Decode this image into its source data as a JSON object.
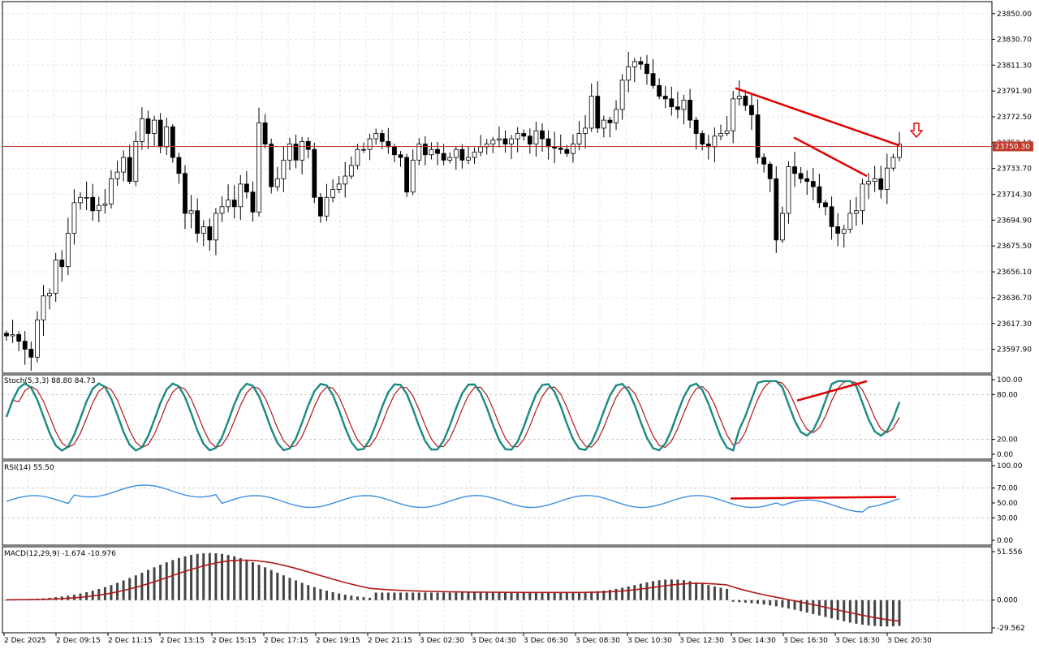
{
  "price_panel": {
    "y_range": [
      23580,
      23859
    ],
    "y_ticks": [
      "23850.00",
      "23830.70",
      "23811.30",
      "23791.90",
      "23772.50",
      "23753.10",
      "23733.70",
      "23714.30",
      "23694.90",
      "23675.50",
      "23656.10",
      "23636.70",
      "23617.30",
      "23597.90"
    ],
    "current_price": 23750.3,
    "current_price_label": "23750.30",
    "current_price_color": "#c0392b",
    "bull_color": "#ffffff",
    "bear_color": "#000000"
  },
  "stoch": {
    "label": "Stoch(5,3,3) 88.80 84.73",
    "ticks": [
      "100.00",
      "80.00",
      "20.00",
      "0.00"
    ],
    "main_color": "#1a8a80",
    "signal_color": "#b01818"
  },
  "rsi": {
    "label": "RSI(14) 55.50",
    "ticks": [
      "100.00",
      "70.00",
      "50.00",
      "30.00",
      "0.00"
    ],
    "color": "#3c8fe0"
  },
  "macd": {
    "label": "MACD(12,29,9) -1.674 -10.976",
    "ticks": [
      "51.556",
      "0.000",
      "-29.562"
    ],
    "hist_color": "#444444",
    "signal_color": "#b01818"
  },
  "x_labels": [
    "2 Dec 2025",
    "2 Dec 09:15",
    "2 Dec 11:15",
    "2 Dec 13:15",
    "2 Dec 15:15",
    "2 Dec 17:15",
    "2 Dec 19:15",
    "2 Dec 21:15",
    "3 Dec 02:30",
    "3 Dec 04:30",
    "3 Dec 06:30",
    "3 Dec 08:30",
    "3 Dec 10:30",
    "3 Dec 12:30",
    "3 Dec 14:30",
    "3 Dec 16:30",
    "3 Dec 18:30",
    "3 Dec 20:30"
  ],
  "divergence_color": "#e00000",
  "chart_data": {
    "type": "candlestick",
    "ylim": [
      23580,
      23859
    ],
    "closes_approx": [
      23608,
      23609,
      23604,
      23598,
      23592,
      23620,
      23638,
      23640,
      23665,
      23660,
      23685,
      23708,
      23712,
      23712,
      23702,
      23706,
      23707,
      23726,
      23731,
      23742,
      23724,
      23754,
      23771,
      23760,
      23770,
      23750,
      23765,
      23742,
      23730,
      23700,
      23702,
      23685,
      23690,
      23680,
      23700,
      23705,
      23710,
      23705,
      23722,
      23716,
      23701,
      23768,
      23752,
      23720,
      23726,
      23740,
      23752,
      23740,
      23754,
      23748,
      23712,
      23698,
      23712,
      23718,
      23722,
      23728,
      23736,
      23748,
      23748,
      23756,
      23760,
      23754,
      23750,
      23744,
      23742,
      23716,
      23740,
      23752,
      23744,
      23748,
      23745,
      23740,
      23742,
      23748,
      23740,
      23742,
      23746,
      23750,
      23752,
      23755,
      23756,
      23752,
      23756,
      23760,
      23758,
      23752,
      23762,
      23756,
      23750,
      23749,
      23748,
      23745,
      23752,
      23760,
      23764,
      23788,
      23764,
      23770,
      23768,
      23778,
      23800,
      23810,
      23814,
      23812,
      23805,
      23796,
      23788,
      23786,
      23780,
      23778,
      23785,
      23770,
      23760,
      23752,
      23750,
      23758,
      23760,
      23762,
      23786,
      23788,
      23781,
      23774,
      23742,
      23737,
      23726,
      23680,
      23700,
      23735,
      23730,
      23726,
      23724,
      23720,
      23708,
      23705,
      23690,
      23685,
      23688,
      23700,
      23702,
      23722,
      23724,
      23726,
      23718,
      23734,
      23742,
      23752
    ]
  }
}
